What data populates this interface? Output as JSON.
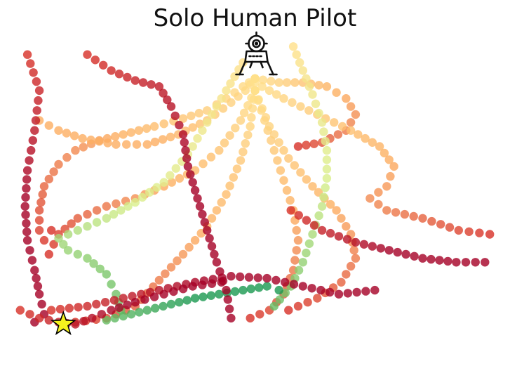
{
  "chart_data": {
    "type": "scatter",
    "title": "Solo Human Pilot",
    "xlabel": "",
    "ylabel": "",
    "xlim": [
      -1.0,
      1.0
    ],
    "ylim": [
      0.0,
      1.4
    ],
    "grid": false,
    "axes_visible": false,
    "colormap": "RdYlGn (time: start yellow at lander, end red/green near goal)",
    "start_marker": {
      "icon": "lunar-lander-icon",
      "x": 0.0,
      "y": 1.4
    },
    "goal_marker": {
      "icon": "star-icon",
      "x": -0.8,
      "y": 0.03,
      "color": "#f6f21e"
    },
    "colors": {
      "early": "#ffe08a",
      "mid_orange": "#fdae61",
      "late_red": "#d73027",
      "final_maroon": "#a50026",
      "pale_green": "#d9ef8b",
      "mid_green": "#66bd63",
      "dark_green": "#1a9850"
    },
    "series": [
      {
        "color_scheme": "orange-red",
        "points": [
          [
            0.0,
            1.26
          ],
          [
            -0.05,
            1.22
          ],
          [
            -0.12,
            1.16
          ],
          [
            -0.2,
            1.1
          ],
          [
            -0.3,
            1.06
          ],
          [
            -0.42,
            1.02
          ],
          [
            -0.55,
            0.98
          ],
          [
            -0.65,
            0.95
          ],
          [
            -0.75,
            0.9
          ],
          [
            -0.82,
            0.83
          ],
          [
            -0.88,
            0.72
          ],
          [
            -0.9,
            0.6
          ],
          [
            -0.9,
            0.5
          ],
          [
            -0.88,
            0.45
          ],
          [
            -0.85,
            0.5
          ]
        ]
      },
      {
        "color_scheme": "orange",
        "points": [
          [
            0.0,
            1.26
          ],
          [
            -0.04,
            1.2
          ],
          [
            -0.1,
            1.14
          ],
          [
            -0.2,
            1.05
          ],
          [
            -0.32,
            0.98
          ],
          [
            -0.45,
            0.93
          ],
          [
            -0.58,
            0.93
          ],
          [
            -0.72,
            0.96
          ],
          [
            -0.82,
            1.0
          ],
          [
            -0.9,
            1.05
          ]
        ]
      },
      {
        "color_scheme": "orange-red",
        "points": [
          [
            0.0,
            1.26
          ],
          [
            0.1,
            1.24
          ],
          [
            0.2,
            1.24
          ],
          [
            0.3,
            1.22
          ],
          [
            0.38,
            1.16
          ],
          [
            0.42,
            1.08
          ],
          [
            0.38,
            1.0
          ],
          [
            0.28,
            0.94
          ],
          [
            0.18,
            0.92
          ]
        ]
      },
      {
        "color_scheme": "orange-red",
        "points": [
          [
            0.0,
            1.24
          ],
          [
            0.12,
            1.16
          ],
          [
            0.26,
            1.08
          ],
          [
            0.4,
            1.0
          ],
          [
            0.52,
            0.92
          ],
          [
            0.58,
            0.82
          ],
          [
            0.55,
            0.72
          ],
          [
            0.48,
            0.66
          ],
          [
            0.55,
            0.6
          ],
          [
            0.7,
            0.56
          ],
          [
            0.85,
            0.5
          ],
          [
            0.98,
            0.48
          ]
        ]
      },
      {
        "color_scheme": "orange-red",
        "points": [
          [
            0.0,
            1.2
          ],
          [
            0.04,
            1.05
          ],
          [
            0.08,
            0.9
          ],
          [
            0.12,
            0.75
          ],
          [
            0.16,
            0.6
          ],
          [
            0.18,
            0.45
          ],
          [
            0.16,
            0.3
          ],
          [
            0.12,
            0.18
          ],
          [
            0.06,
            0.1
          ],
          [
            -0.02,
            0.06
          ]
        ]
      },
      {
        "color_scheme": "orange-red",
        "points": [
          [
            0.0,
            1.2
          ],
          [
            -0.02,
            1.02
          ],
          [
            -0.06,
            0.85
          ],
          [
            -0.12,
            0.68
          ],
          [
            -0.2,
            0.52
          ],
          [
            -0.3,
            0.38
          ],
          [
            -0.4,
            0.25
          ],
          [
            -0.5,
            0.12
          ],
          [
            -0.62,
            0.06
          ],
          [
            -0.75,
            0.04
          ]
        ]
      },
      {
        "color_scheme": "orange-red",
        "points": [
          [
            0.0,
            1.2
          ],
          [
            -0.06,
            1.05
          ],
          [
            -0.15,
            0.9
          ],
          [
            -0.25,
            0.8
          ],
          [
            -0.38,
            0.72
          ],
          [
            -0.5,
            0.66
          ],
          [
            -0.62,
            0.62
          ],
          [
            -0.74,
            0.56
          ],
          [
            -0.82,
            0.48
          ],
          [
            -0.86,
            0.38
          ]
        ]
      },
      {
        "color_scheme": "orange-red",
        "points": [
          [
            0.0,
            1.2
          ],
          [
            0.06,
            1.02
          ],
          [
            0.14,
            0.86
          ],
          [
            0.24,
            0.72
          ],
          [
            0.34,
            0.6
          ],
          [
            0.4,
            0.48
          ],
          [
            0.42,
            0.36
          ],
          [
            0.36,
            0.24
          ],
          [
            0.26,
            0.16
          ],
          [
            0.14,
            0.1
          ]
        ]
      },
      {
        "color_scheme": "yellow-green",
        "points": [
          [
            0.16,
            1.42
          ],
          [
            0.2,
            1.3
          ],
          [
            0.24,
            1.18
          ],
          [
            0.28,
            1.04
          ],
          [
            0.3,
            0.9
          ],
          [
            0.3,
            0.76
          ],
          [
            0.28,
            0.62
          ],
          [
            0.24,
            0.48
          ],
          [
            0.2,
            0.34
          ],
          [
            0.15,
            0.22
          ],
          [
            0.08,
            0.12
          ]
        ]
      },
      {
        "color_scheme": "yellow-green",
        "points": [
          [
            -0.05,
            1.34
          ],
          [
            -0.12,
            1.2
          ],
          [
            -0.2,
            1.04
          ],
          [
            -0.28,
            0.88
          ],
          [
            -0.38,
            0.74
          ],
          [
            -0.5,
            0.64
          ],
          [
            -0.62,
            0.56
          ],
          [
            -0.74,
            0.5
          ],
          [
            -0.82,
            0.46
          ],
          [
            -0.78,
            0.4
          ],
          [
            -0.7,
            0.36
          ],
          [
            -0.62,
            0.28
          ],
          [
            -0.58,
            0.18
          ],
          [
            -0.56,
            0.1
          ]
        ]
      },
      {
        "color_scheme": "green-end",
        "points": [
          [
            -0.62,
            0.05
          ],
          [
            -0.55,
            0.07
          ],
          [
            -0.45,
            0.1
          ],
          [
            -0.35,
            0.13
          ],
          [
            -0.25,
            0.16
          ],
          [
            -0.15,
            0.18
          ],
          [
            -0.05,
            0.2
          ],
          [
            0.05,
            0.22
          ],
          [
            0.1,
            0.2
          ]
        ]
      },
      {
        "color_scheme": "red-maroon",
        "points": [
          [
            -0.95,
            1.38
          ],
          [
            -0.9,
            1.2
          ],
          [
            -0.92,
            1.0
          ],
          [
            -0.95,
            0.8
          ],
          [
            -0.96,
            0.62
          ],
          [
            -0.95,
            0.45
          ],
          [
            -0.92,
            0.3
          ],
          [
            -0.9,
            0.18
          ],
          [
            -0.88,
            0.08
          ],
          [
            -0.92,
            0.04
          ]
        ]
      },
      {
        "color_scheme": "red-maroon",
        "points": [
          [
            -0.7,
            1.38
          ],
          [
            -0.6,
            1.3
          ],
          [
            -0.5,
            1.25
          ],
          [
            -0.4,
            1.22
          ],
          [
            -0.35,
            1.12
          ],
          [
            -0.3,
            0.98
          ],
          [
            -0.28,
            0.82
          ],
          [
            -0.24,
            0.66
          ],
          [
            -0.2,
            0.5
          ],
          [
            -0.16,
            0.34
          ],
          [
            -0.12,
            0.2
          ],
          [
            -0.1,
            0.06
          ]
        ]
      },
      {
        "color_scheme": "red-maroon",
        "points": [
          [
            0.15,
            0.6
          ],
          [
            0.28,
            0.5
          ],
          [
            0.42,
            0.44
          ],
          [
            0.56,
            0.4
          ],
          [
            0.7,
            0.36
          ],
          [
            0.84,
            0.34
          ],
          [
            0.96,
            0.34
          ]
        ]
      },
      {
        "color_scheme": "red-maroon",
        "points": [
          [
            -0.85,
            0.1
          ],
          [
            -0.7,
            0.12
          ],
          [
            -0.55,
            0.16
          ],
          [
            -0.4,
            0.2
          ],
          [
            -0.25,
            0.24
          ],
          [
            -0.1,
            0.27
          ],
          [
            0.05,
            0.26
          ],
          [
            0.2,
            0.22
          ],
          [
            0.35,
            0.18
          ],
          [
            0.5,
            0.2
          ]
        ]
      },
      {
        "color_scheme": "red-maroon",
        "points": [
          [
            -0.98,
            0.1
          ],
          [
            -0.9,
            0.06
          ],
          [
            -0.82,
            0.04
          ],
          [
            -0.75,
            0.03
          ],
          [
            -0.68,
            0.06
          ],
          [
            -0.6,
            0.1
          ],
          [
            -0.5,
            0.14
          ],
          [
            -0.38,
            0.18
          ],
          [
            -0.26,
            0.22
          ],
          [
            -0.14,
            0.24
          ]
        ]
      }
    ]
  }
}
